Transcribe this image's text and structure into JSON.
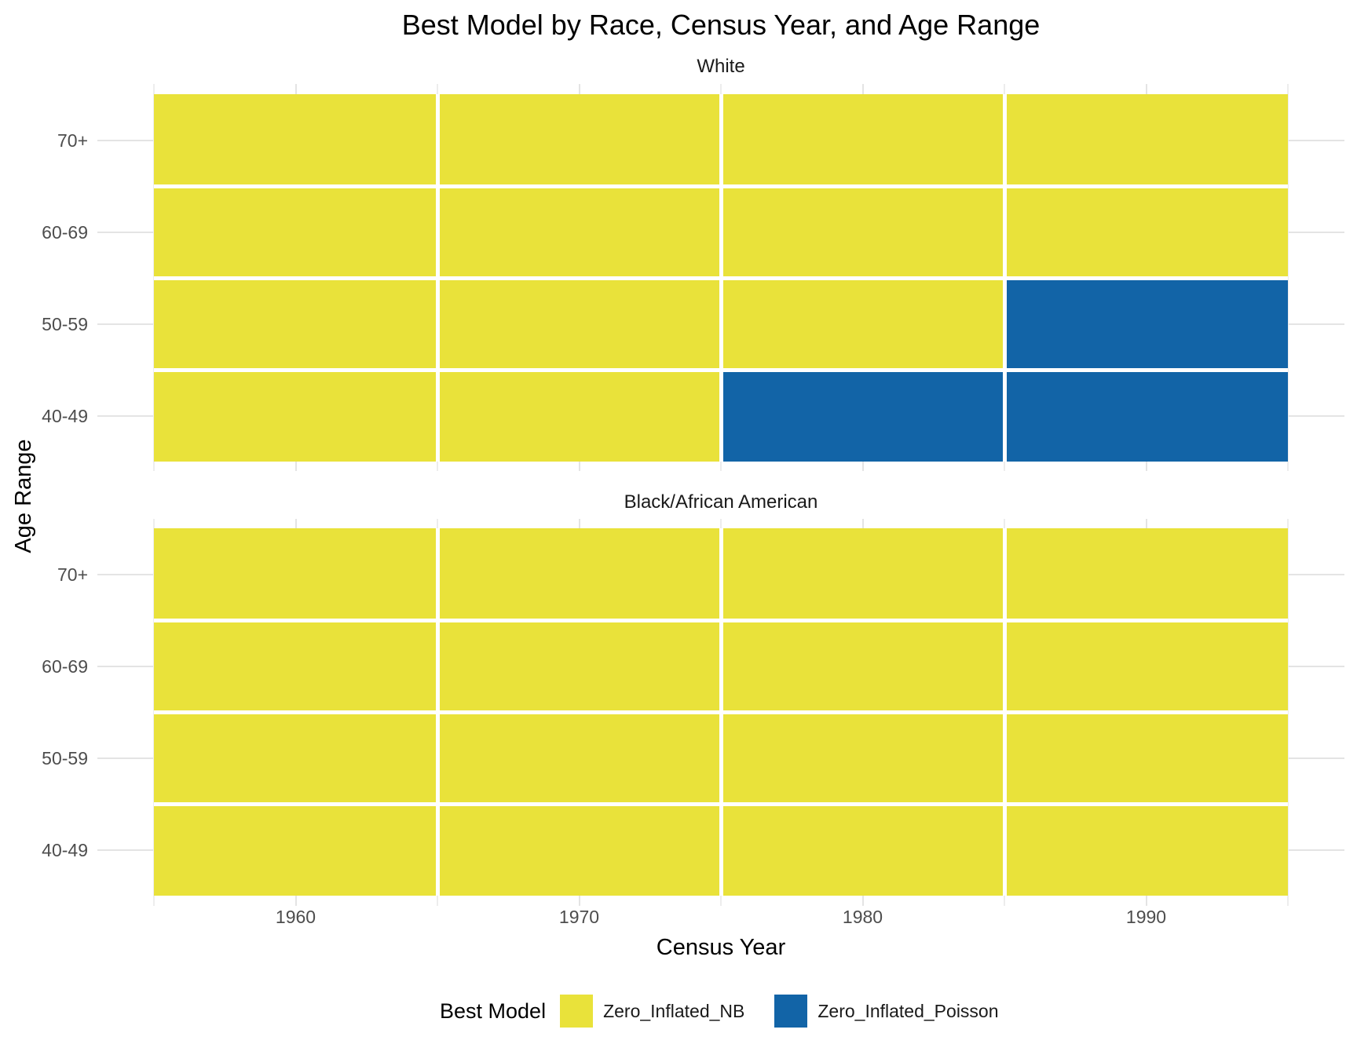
{
  "title": "Best Model by Race, Census Year, and Age Range",
  "x_axis": {
    "label": "Census Year",
    "ticks": [
      "1960",
      "1970",
      "1980",
      "1990"
    ]
  },
  "y_axis": {
    "label": "Age Range",
    "ticks": [
      "70+",
      "60-69",
      "50-59",
      "40-49"
    ]
  },
  "legend": {
    "title": "Best Model",
    "entries": [
      {
        "label": "Zero_Inflated_NB",
        "color": "#E9E23A"
      },
      {
        "label": "Zero_Inflated_Poisson",
        "color": "#1264A7"
      }
    ]
  },
  "chart_data": {
    "type": "heatmap",
    "title": "Best Model by Race, Census Year, and Age Range",
    "xlabel": "Census Year",
    "ylabel": "Age Range",
    "legend_title": "Best Model",
    "x": [
      1960,
      1970,
      1980,
      1990
    ],
    "y_top_to_bottom": [
      "70+",
      "60-69",
      "50-59",
      "40-49"
    ],
    "palette": {
      "Zero_Inflated_NB": "#E9E23A",
      "Zero_Inflated_Poisson": "#1264A7"
    },
    "facets": [
      {
        "name": "White",
        "grid": [
          [
            "Zero_Inflated_NB",
            "Zero_Inflated_NB",
            "Zero_Inflated_NB",
            "Zero_Inflated_NB"
          ],
          [
            "Zero_Inflated_NB",
            "Zero_Inflated_NB",
            "Zero_Inflated_NB",
            "Zero_Inflated_NB"
          ],
          [
            "Zero_Inflated_NB",
            "Zero_Inflated_NB",
            "Zero_Inflated_NB",
            "Zero_Inflated_Poisson"
          ],
          [
            "Zero_Inflated_NB",
            "Zero_Inflated_NB",
            "Zero_Inflated_Poisson",
            "Zero_Inflated_Poisson"
          ]
        ]
      },
      {
        "name": "Black/African American",
        "grid": [
          [
            "Zero_Inflated_NB",
            "Zero_Inflated_NB",
            "Zero_Inflated_NB",
            "Zero_Inflated_NB"
          ],
          [
            "Zero_Inflated_NB",
            "Zero_Inflated_NB",
            "Zero_Inflated_NB",
            "Zero_Inflated_NB"
          ],
          [
            "Zero_Inflated_NB",
            "Zero_Inflated_NB",
            "Zero_Inflated_NB",
            "Zero_Inflated_NB"
          ],
          [
            "Zero_Inflated_NB",
            "Zero_Inflated_NB",
            "Zero_Inflated_NB",
            "Zero_Inflated_NB"
          ]
        ]
      }
    ],
    "layout_hints": {
      "facet_layout": "stacked-rows",
      "grid": true,
      "legend_position": "bottom",
      "tile_gap_color": "#FFFFFF"
    }
  }
}
